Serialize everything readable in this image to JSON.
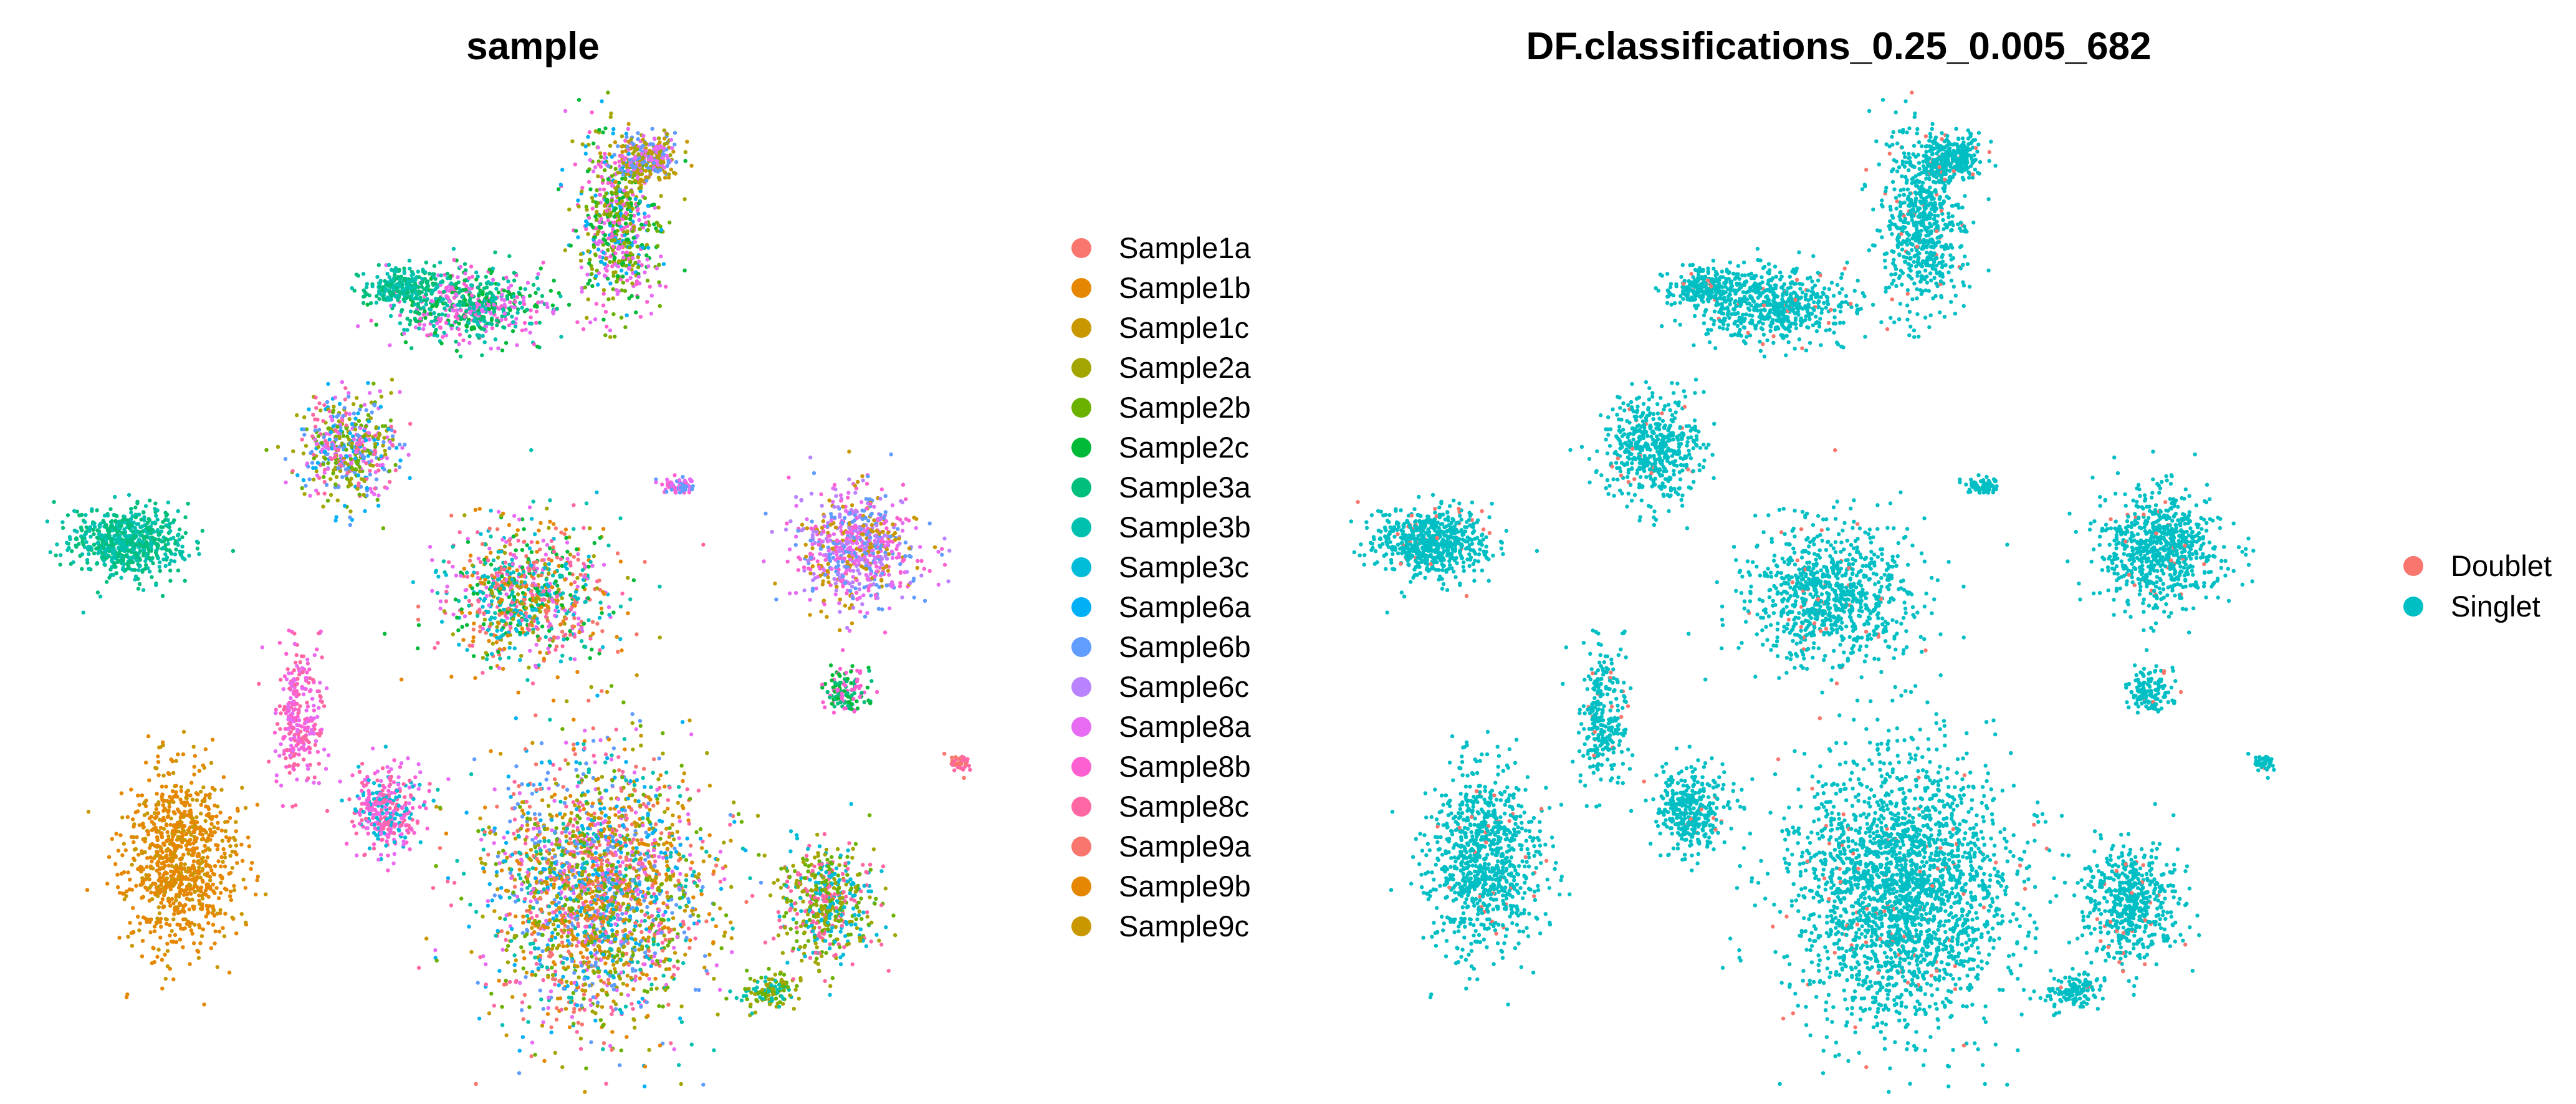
{
  "chart_data": [
    {
      "type": "scatter",
      "title": "sample",
      "xlabel": "",
      "ylabel": "",
      "grid": false,
      "axes_visible": false,
      "legend_position": "right",
      "series": [
        {
          "name": "Sample1a",
          "color": "#F8766D"
        },
        {
          "name": "Sample1b",
          "color": "#E58700"
        },
        {
          "name": "Sample1c",
          "color": "#C99800"
        },
        {
          "name": "Sample2a",
          "color": "#A3A500"
        },
        {
          "name": "Sample2b",
          "color": "#6BB100"
        },
        {
          "name": "Sample2c",
          "color": "#00BA38"
        },
        {
          "name": "Sample3a",
          "color": "#00BF7D"
        },
        {
          "name": "Sample3b",
          "color": "#00C0AF"
        },
        {
          "name": "Sample3c",
          "color": "#00BCD8"
        },
        {
          "name": "Sample6a",
          "color": "#00B0F6"
        },
        {
          "name": "Sample6b",
          "color": "#619CFF"
        },
        {
          "name": "Sample6c",
          "color": "#B983FF"
        },
        {
          "name": "Sample8a",
          "color": "#E76BF3"
        },
        {
          "name": "Sample8b",
          "color": "#FD61D1"
        },
        {
          "name": "Sample8c",
          "color": "#FF67A4"
        },
        {
          "name": "Sample9a",
          "color": "#F8766D"
        },
        {
          "name": "Sample9b",
          "color": "#E58700"
        },
        {
          "name": "Sample9c",
          "color": "#C99800"
        }
      ]
    },
    {
      "type": "scatter",
      "title": "DF.classifications_0.25_0.005_682",
      "xlabel": "",
      "ylabel": "",
      "grid": false,
      "axes_visible": false,
      "legend_position": "right",
      "series": [
        {
          "name": "Doublet",
          "color": "#F8766D"
        },
        {
          "name": "Singlet",
          "color": "#00BFC4"
        }
      ]
    }
  ]
}
